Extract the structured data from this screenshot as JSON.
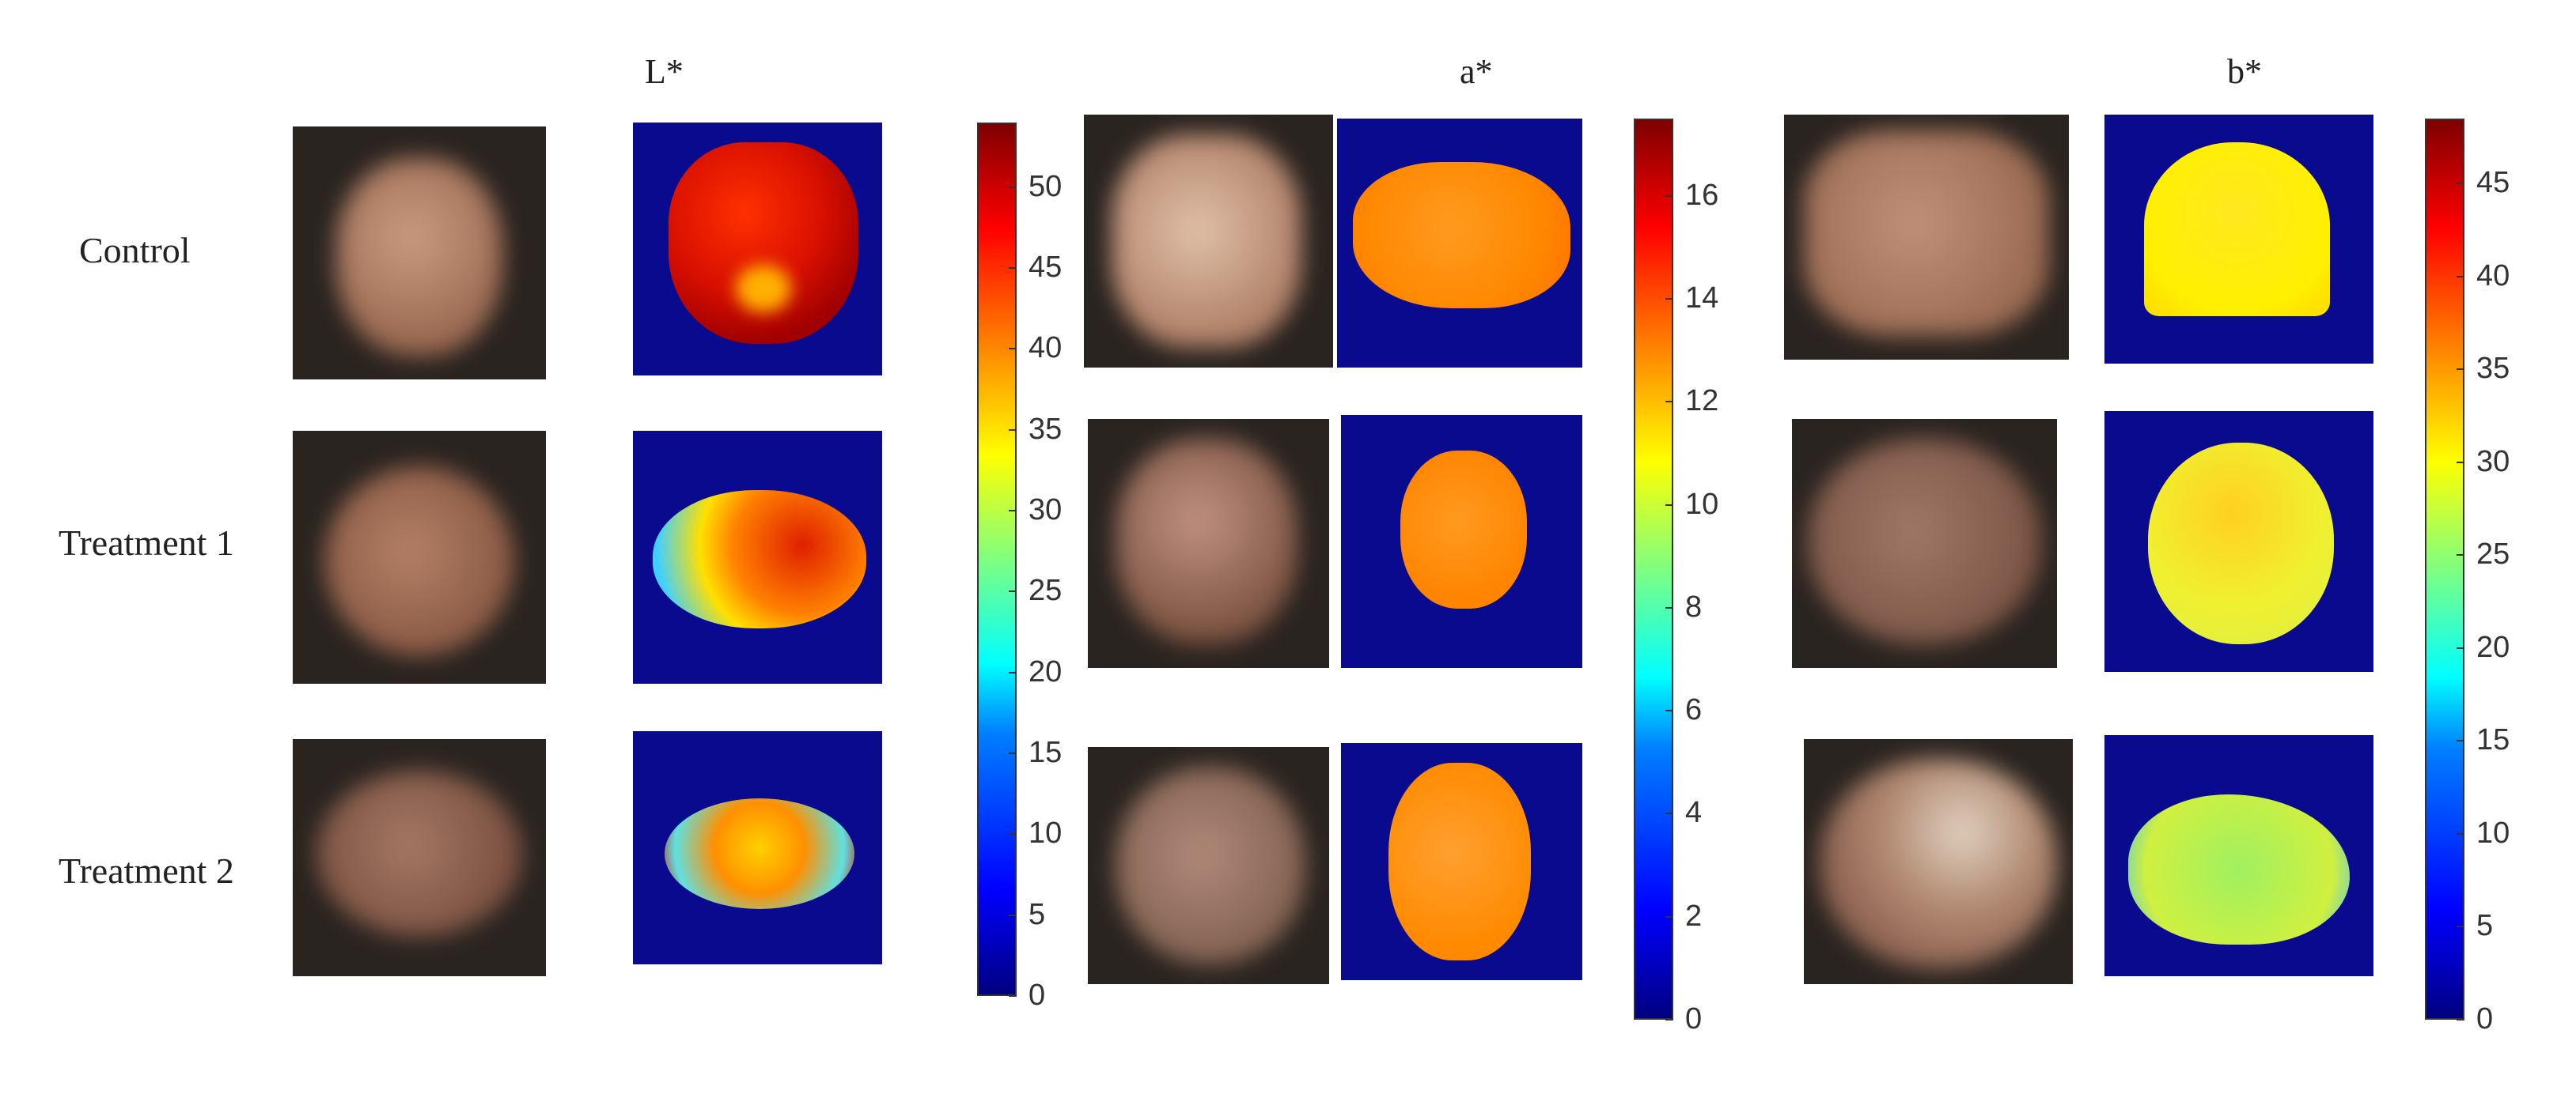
{
  "rows": [
    "Control",
    "Treatment 1",
    "Treatment 2"
  ],
  "panels": [
    {
      "title": "L*",
      "ticks": [
        "0",
        "5",
        "10",
        "15",
        "20",
        "25",
        "30",
        "35",
        "40",
        "45",
        "50"
      ],
      "min": 0,
      "max": 54
    },
    {
      "title": "a*",
      "ticks": [
        "0",
        "2",
        "4",
        "6",
        "8",
        "10",
        "12",
        "14",
        "16"
      ],
      "min": 0,
      "max": 17.5
    },
    {
      "title": "b*",
      "ticks": [
        "0",
        "5",
        "10",
        "15",
        "20",
        "25",
        "30",
        "35",
        "40",
        "45"
      ],
      "min": 0,
      "max": 48.5
    }
  ],
  "colors": {
    "background_map": "#0a0a8e",
    "photo_bg": "#2a2420"
  }
}
